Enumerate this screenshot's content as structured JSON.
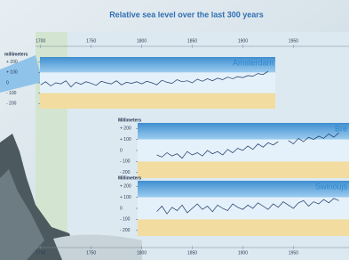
{
  "title": "Relative sea level over the last 300 years",
  "x_axis": {
    "xlim": [
      1695,
      2005
    ],
    "xticks": [
      1700,
      1750,
      1800,
      1850,
      1900,
      1950
    ]
  },
  "chart_data": [
    {
      "type": "line",
      "label": "Amsterdam",
      "ylabel": "millimeters",
      "ylim": [
        -250,
        250
      ],
      "yticks": [
        {
          "value": 200,
          "label": "+ 200"
        },
        {
          "value": 100,
          "label": "+ 100"
        },
        0,
        {
          "value": -100,
          "label": "- 100"
        },
        {
          "value": -200,
          "label": "- 200"
        }
      ],
      "x": [
        1700,
        1705,
        1710,
        1715,
        1720,
        1725,
        1730,
        1735,
        1740,
        1745,
        1750,
        1755,
        1760,
        1765,
        1770,
        1775,
        1780,
        1785,
        1790,
        1795,
        1800,
        1805,
        1810,
        1815,
        1820,
        1825,
        1830,
        1835,
        1840,
        1845,
        1850,
        1855,
        1860,
        1865,
        1870,
        1875,
        1880,
        1885,
        1890,
        1895,
        1900,
        1905,
        1910,
        1915,
        1920,
        1925
      ],
      "series": [
        {
          "color": "#1b3566",
          "values": [
            -20,
            10,
            -30,
            0,
            -10,
            20,
            -40,
            5,
            -15,
            10,
            -5,
            -25,
            15,
            0,
            -10,
            20,
            -20,
            5,
            -5,
            10,
            -10,
            15,
            0,
            -20,
            25,
            5,
            -5,
            30,
            10,
            20,
            0,
            35,
            15,
            40,
            20,
            45,
            30,
            55,
            40,
            60,
            50,
            70,
            65,
            90,
            80,
            110
          ]
        }
      ]
    },
    {
      "type": "line",
      "label": "Bre",
      "ylabel": "Millimeters",
      "ylim": [
        -250,
        250
      ],
      "yticks": [
        {
          "value": 200,
          "label": "+ 200"
        },
        {
          "value": 100,
          "label": "+ 100"
        },
        0,
        {
          "value": -100,
          "label": "- 100"
        },
        {
          "value": -200,
          "label": "- 200"
        }
      ],
      "x": [
        1815,
        1820,
        1825,
        1830,
        1835,
        1840,
        1845,
        1850,
        1855,
        1860,
        1865,
        1870,
        1875,
        1880,
        1885,
        1890,
        1895,
        1900,
        1905,
        1910,
        1915,
        1920,
        1925,
        1930,
        1935,
        1940,
        1945,
        1950,
        1955,
        1960,
        1965,
        1970,
        1975,
        1980,
        1985,
        1990,
        1995
      ],
      "series": [
        {
          "color": "#1b3566",
          "values": [
            -40,
            -60,
            -20,
            -50,
            -30,
            -70,
            -10,
            -40,
            -20,
            -50,
            0,
            -30,
            -10,
            -40,
            10,
            -20,
            20,
            0,
            40,
            10,
            60,
            30,
            70,
            50,
            80,
            null,
            90,
            60,
            110,
            80,
            120,
            100,
            130,
            110,
            150,
            120,
            160
          ]
        }
      ]
    },
    {
      "type": "line",
      "label": "Swinoujs",
      "ylabel": "Millimeters",
      "ylim": [
        -250,
        250
      ],
      "yticks": [
        {
          "value": 200,
          "label": "+ 200"
        },
        {
          "value": 100,
          "label": "+ 100"
        },
        0,
        {
          "value": -100,
          "label": "- 100"
        },
        {
          "value": -200,
          "label": "- 200"
        }
      ],
      "x": [
        1815,
        1820,
        1825,
        1830,
        1835,
        1840,
        1845,
        1850,
        1855,
        1860,
        1865,
        1870,
        1875,
        1880,
        1885,
        1890,
        1895,
        1900,
        1905,
        1910,
        1915,
        1920,
        1925,
        1930,
        1935,
        1940,
        1945,
        1950,
        1955,
        1960,
        1965,
        1970,
        1975,
        1980,
        1985,
        1990,
        1995
      ],
      "series": [
        {
          "color": "#1b3566",
          "values": [
            -30,
            20,
            -50,
            10,
            -20,
            30,
            -40,
            0,
            40,
            -10,
            20,
            -30,
            30,
            0,
            -20,
            40,
            10,
            -10,
            30,
            0,
            50,
            20,
            -10,
            40,
            10,
            60,
            30,
            0,
            50,
            70,
            20,
            60,
            40,
            80,
            50,
            90,
            70
          ]
        }
      ]
    }
  ]
}
